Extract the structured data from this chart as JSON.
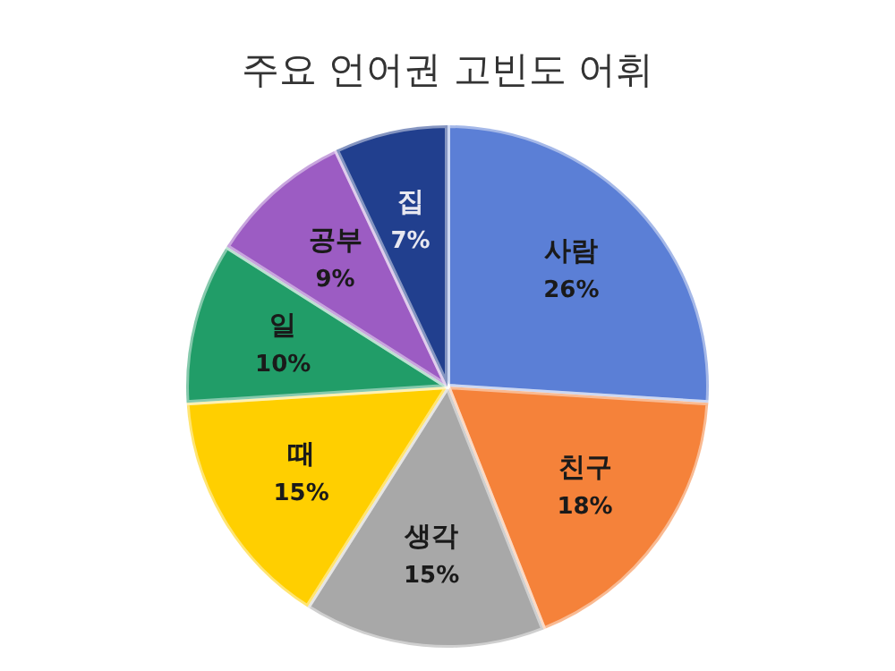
{
  "chart_data": {
    "type": "pie",
    "title": "주요 언어권 고빈도 어휘",
    "categories": [
      "사람",
      "친구",
      "생각",
      "때",
      "일",
      "공부",
      "집"
    ],
    "values": [
      26,
      18,
      15,
      15,
      10,
      9,
      7
    ],
    "colors": [
      "#5b7fd6",
      "#f5823a",
      "#a8a8a8",
      "#ffcf00",
      "#219d68",
      "#9c5cc3",
      "#213f8e"
    ],
    "value_labels": [
      "26%",
      "18%",
      "15%",
      "15%",
      "10%",
      "9%",
      "7%"
    ]
  }
}
